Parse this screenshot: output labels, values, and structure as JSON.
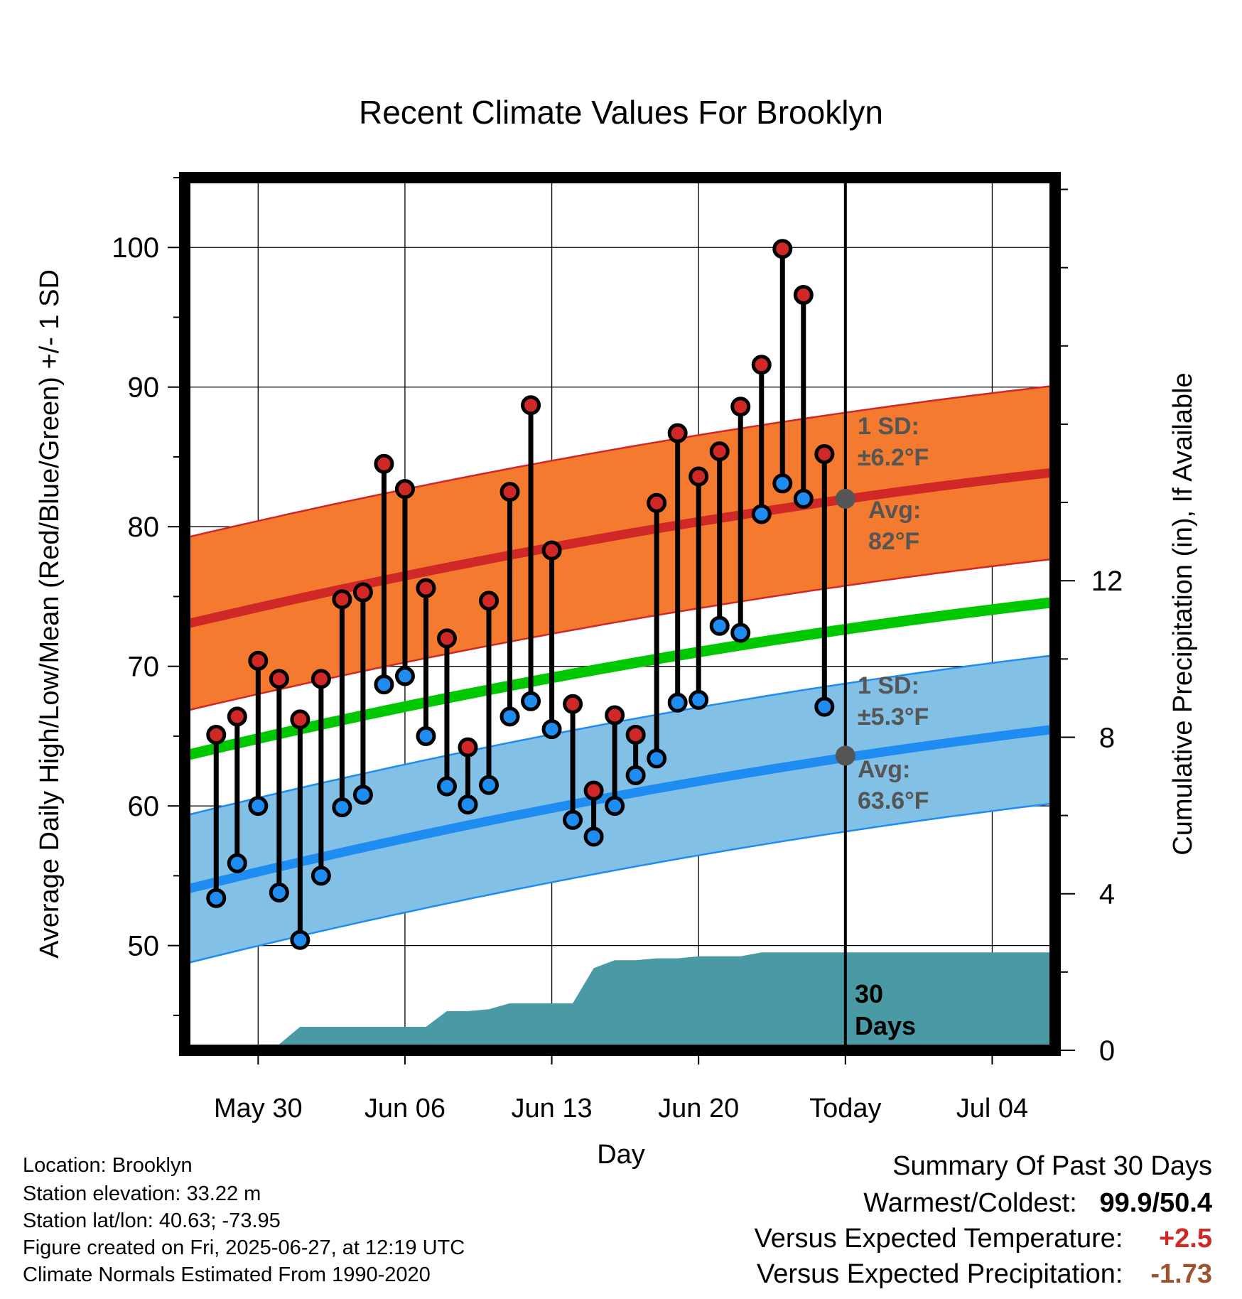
{
  "chart_data": {
    "type": "line",
    "title": "Recent Climate Values For Brooklyn",
    "xlabel": "Day",
    "ylabel": "Average Daily High/Low/Mean (Red/Blue/Green) +/- 1 SD",
    "y2label": "Cumulative Precipitation (in), If Available",
    "x_range_days": [
      -30.5,
      11
    ],
    "x_ticks": [
      {
        "day": -27,
        "label": "May 30"
      },
      {
        "day": -20,
        "label": "Jun 06"
      },
      {
        "day": -13,
        "label": "Jun 13"
      },
      {
        "day": -6,
        "label": "Jun 20"
      },
      {
        "day": 1,
        "label": "Today"
      },
      {
        "day": 8,
        "label": "Jul 04"
      }
    ],
    "today_day": 1,
    "ylim": [
      42.5,
      105
    ],
    "y_ticks": [
      50,
      60,
      70,
      80,
      90,
      100
    ],
    "y2lim": [
      0,
      22.3
    ],
    "y2_ticks": [
      0,
      4,
      8,
      12
    ],
    "grid": true,
    "daily_high": [
      65.1,
      66.4,
      70.4,
      69.1,
      66.2,
      69.1,
      74.8,
      75.3,
      84.5,
      82.7,
      75.6,
      72.0,
      64.2,
      74.7,
      82.5,
      88.7,
      78.3,
      67.3,
      61.1,
      66.5,
      65.1,
      81.7,
      86.7,
      83.6,
      85.4,
      88.6,
      91.6,
      99.9,
      96.6,
      85.2
    ],
    "daily_low": [
      53.4,
      55.9,
      60.0,
      53.8,
      50.4,
      55.0,
      59.9,
      60.8,
      68.7,
      69.3,
      65.0,
      61.4,
      60.1,
      61.5,
      66.4,
      67.5,
      65.5,
      59.0,
      57.8,
      60.0,
      62.2,
      63.4,
      67.4,
      67.6,
      72.9,
      72.4,
      80.9,
      83.1,
      82.0,
      67.1
    ],
    "normal_high": {
      "day_start": -30.5,
      "start": 73.0,
      "end": 83.9
    },
    "normal_low": {
      "day_start": -30.5,
      "start": 54.0,
      "end": 65.5
    },
    "normal_mean": {
      "day_start": -30.5,
      "start": 63.6,
      "end": 74.6
    },
    "high_sd": 6.2,
    "low_sd": 5.3,
    "cumulative_precip": [
      0.0,
      0.1,
      0.15,
      0.15,
      0.6,
      0.6,
      0.6,
      0.6,
      0.6,
      0.6,
      0.6,
      1.0,
      1.0,
      1.05,
      1.2,
      1.2,
      1.2,
      1.2,
      2.1,
      2.3,
      2.3,
      2.35,
      2.35,
      2.4,
      2.4,
      2.4,
      2.5,
      2.5,
      2.5,
      2.5
    ],
    "annotations": {
      "high_sd_label": "1 SD:",
      "high_sd_value": "±6.2°F",
      "high_avg_label": "Avg:",
      "high_avg_value": "82°F",
      "high_avg_marker": 82,
      "low_sd_label": "1 SD:",
      "low_sd_value": "±5.3°F",
      "low_avg_label": "Avg:",
      "low_avg_value": "63.6°F",
      "low_avg_marker": 63.6,
      "precip_label_1": "30",
      "precip_label_2": "Days"
    },
    "colors": {
      "high_band": "#f47a30",
      "high_line": "#d02727",
      "low_band": "#82c0e6",
      "low_line": "#1e8cf0",
      "mean_line": "#00c800",
      "precip": "#4a9aa5",
      "high_marker": "#d02727",
      "low_marker": "#1e8cf0",
      "annotation": "#555555"
    }
  },
  "info": {
    "location": "Location: Brooklyn",
    "elevation": "Station elevation: 33.22 m",
    "latlon": "Station lat/lon: 40.63; -73.95",
    "created": "Figure created on Fri, 2025-06-27, at 12:19 UTC",
    "normals": "Climate Normals Estimated From 1990-2020"
  },
  "summary": {
    "title": "Summary Of Past 30 Days",
    "warm_cold_label": "Warmest/Coldest:",
    "warmest": "99.9",
    "coldest": "50.4",
    "temp_label": "Versus Expected Temperature:",
    "temp_value": "+2.5",
    "temp_color": "#d02727",
    "precip_label": "Versus Expected Precipitation:",
    "precip_value": "-1.73",
    "precip_color": "#a0522d"
  }
}
